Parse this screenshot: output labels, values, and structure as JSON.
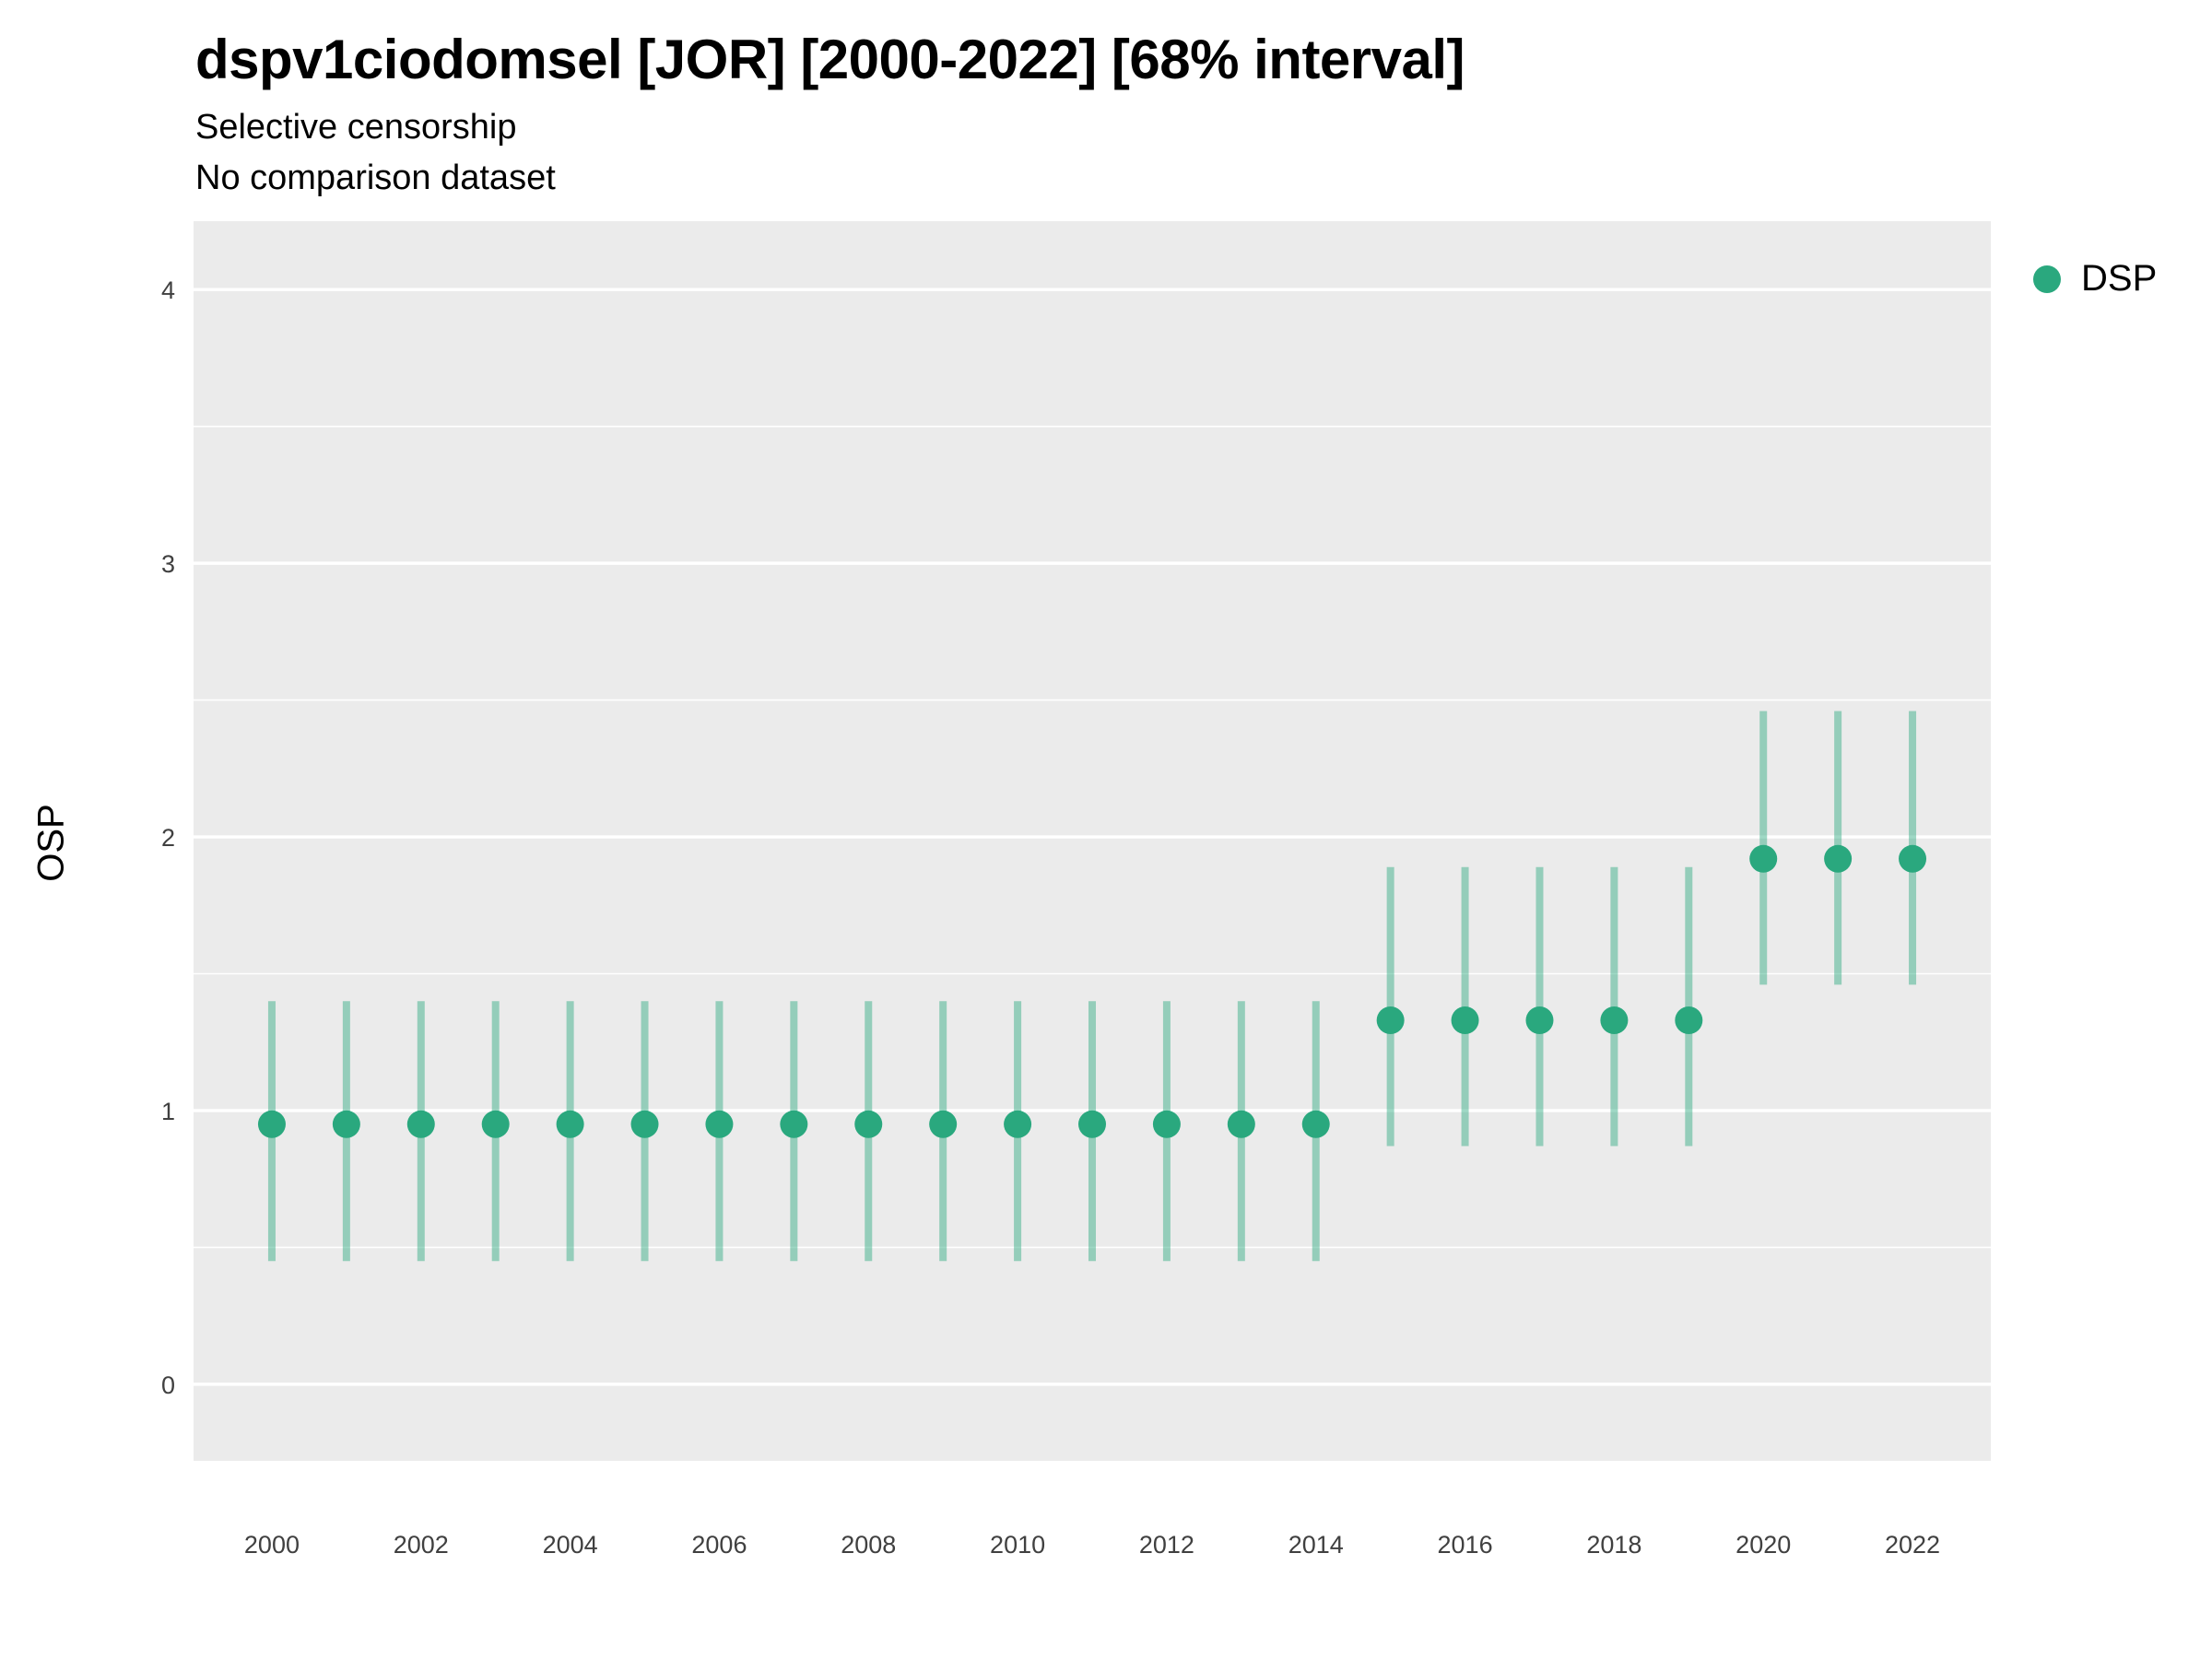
{
  "header": {
    "title": "dspv1ciodomsel [JOR] [2000-2022] [68% interval]",
    "subtitle1": "Selective censorship",
    "subtitle2": "No comparison dataset"
  },
  "legend": {
    "items": [
      {
        "label": "DSP",
        "marker": "circle-icon",
        "color": "#2aa87e"
      }
    ]
  },
  "chart_data": {
    "type": "scatter",
    "title": "dspv1ciodomsel [JOR] [2000-2022] [68% interval]",
    "subtitle": "Selective censorship / No comparison dataset",
    "xlabel": "",
    "ylabel": "OSP",
    "legend_position": "right",
    "grid": "horizontal-only",
    "x": [
      2000,
      2001,
      2002,
      2003,
      2004,
      2005,
      2006,
      2007,
      2008,
      2009,
      2010,
      2011,
      2012,
      2013,
      2014,
      2015,
      2016,
      2017,
      2018,
      2019,
      2020,
      2021,
      2022
    ],
    "series": [
      {
        "name": "DSP",
        "values": [
          0.95,
          0.95,
          0.95,
          0.95,
          0.95,
          0.95,
          0.95,
          0.95,
          0.95,
          0.95,
          0.95,
          0.95,
          0.95,
          0.95,
          0.95,
          1.33,
          1.33,
          1.33,
          1.33,
          1.33,
          1.92,
          1.92,
          1.92
        ],
        "lower": [
          0.45,
          0.45,
          0.45,
          0.45,
          0.45,
          0.45,
          0.45,
          0.45,
          0.45,
          0.45,
          0.45,
          0.45,
          0.45,
          0.45,
          0.45,
          0.87,
          0.87,
          0.87,
          0.87,
          0.87,
          1.46,
          1.46,
          1.46
        ],
        "upper": [
          1.4,
          1.4,
          1.4,
          1.4,
          1.4,
          1.4,
          1.4,
          1.4,
          1.4,
          1.4,
          1.4,
          1.4,
          1.4,
          1.4,
          1.4,
          1.89,
          1.89,
          1.89,
          1.89,
          1.89,
          2.46,
          2.46,
          2.46
        ]
      }
    ],
    "x_ticks": [
      2000,
      2002,
      2004,
      2006,
      2008,
      2010,
      2012,
      2014,
      2016,
      2018,
      2020,
      2022
    ],
    "y_ticks": [
      0,
      1,
      2,
      3,
      4
    ],
    "y_minor": [
      0.5,
      1.5,
      2.5,
      3.5
    ],
    "xlim": [
      1998.95,
      2023.05
    ],
    "ylim": [
      -0.28,
      4.25
    ],
    "colors": {
      "point": "#2aa87e",
      "interval": "rgba(42,168,126,0.45)",
      "panel_bg": "#EBEBEB",
      "grid": "#FFFFFF",
      "tick_label": "#404040",
      "text": "#000000"
    }
  }
}
